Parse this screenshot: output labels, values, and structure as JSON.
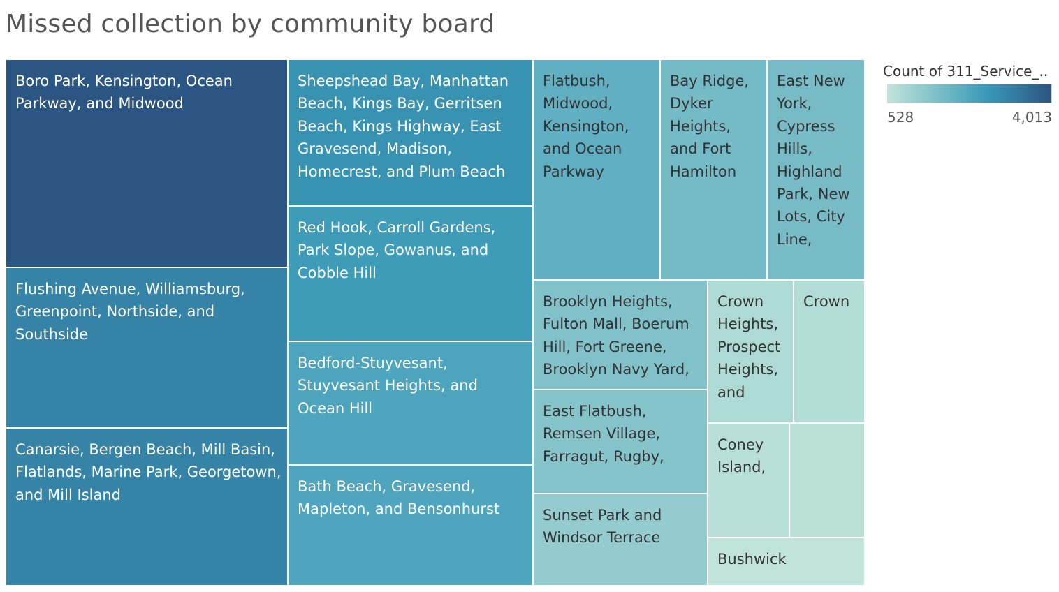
{
  "header": {
    "title": "Missed collection by community board"
  },
  "legend": {
    "title": "Count of 311_Service_..",
    "min_label": "528",
    "max_label": "4,013",
    "color_low": "#c1e4da",
    "color_mid": "#3a9ab8",
    "color_high": "#2b5582"
  },
  "chart_data": {
    "type": "treemap",
    "title": "Missed collection by community board",
    "color_measure": "Count of 311_Service_..",
    "color_range": [
      528,
      4013
    ],
    "items": [
      {
        "label": "Boro Park, Kensington, Ocean Parkway, and Midwood",
        "value": 4013
      },
      {
        "label": "Flushing Avenue, Williamsburg, Greenpoint, Northside, and Southside",
        "value": 3080
      },
      {
        "label": "Canarsie, Bergen Beach, Mill Basin, Flatlands, Marine Park, Georgetown, and Mill Island",
        "value": 3090
      },
      {
        "label": "Sheepshead Bay, Manhattan Beach, Kings Bay, Gerritsen Beach, Kings Highway, East Gravesend, Madison, Homecrest, and Plum Beach",
        "value": 2770
      },
      {
        "label": "Red Hook, Carroll Gardens, Park Slope, Gowanus, and Cobble Hill",
        "value": 2560
      },
      {
        "label": "Bedford-Stuyvesant, Stuyvesant Heights, and Ocean Hill",
        "value": 2330
      },
      {
        "label": "Bath Beach, Gravesend, Mapleton, and Bensonhurst",
        "value": 2300
      },
      {
        "label": "Flatbush, Midwood, Kensington, and Ocean Parkway",
        "value": 2030
      },
      {
        "label": "Bay Ridge, Dyker Heights, and Fort Hamilton",
        "value": 1710
      },
      {
        "label": "East New York, Cypress Hills, Highland Park, New Lots, City Line,",
        "value": 1680
      },
      {
        "label": "Brooklyn Heights, Fulton Mall, Boerum Hill, Fort Greene, Brooklyn Navy Yard,",
        "value": 1520
      },
      {
        "label": "East Flatbush, Remsen Village, Farragut, Rugby,",
        "value": 1440
      },
      {
        "label": "Sunset Park and Windsor Terrace",
        "value": 1240
      },
      {
        "label": "Crown Heights, Prospect Heights, and",
        "value": 820
      },
      {
        "label": "Crown",
        "value": 760
      },
      {
        "label": "Coney Island,",
        "value": 650
      },
      {
        "label": "",
        "value": 630
      },
      {
        "label": "Bushwick",
        "value": 528
      }
    ]
  }
}
